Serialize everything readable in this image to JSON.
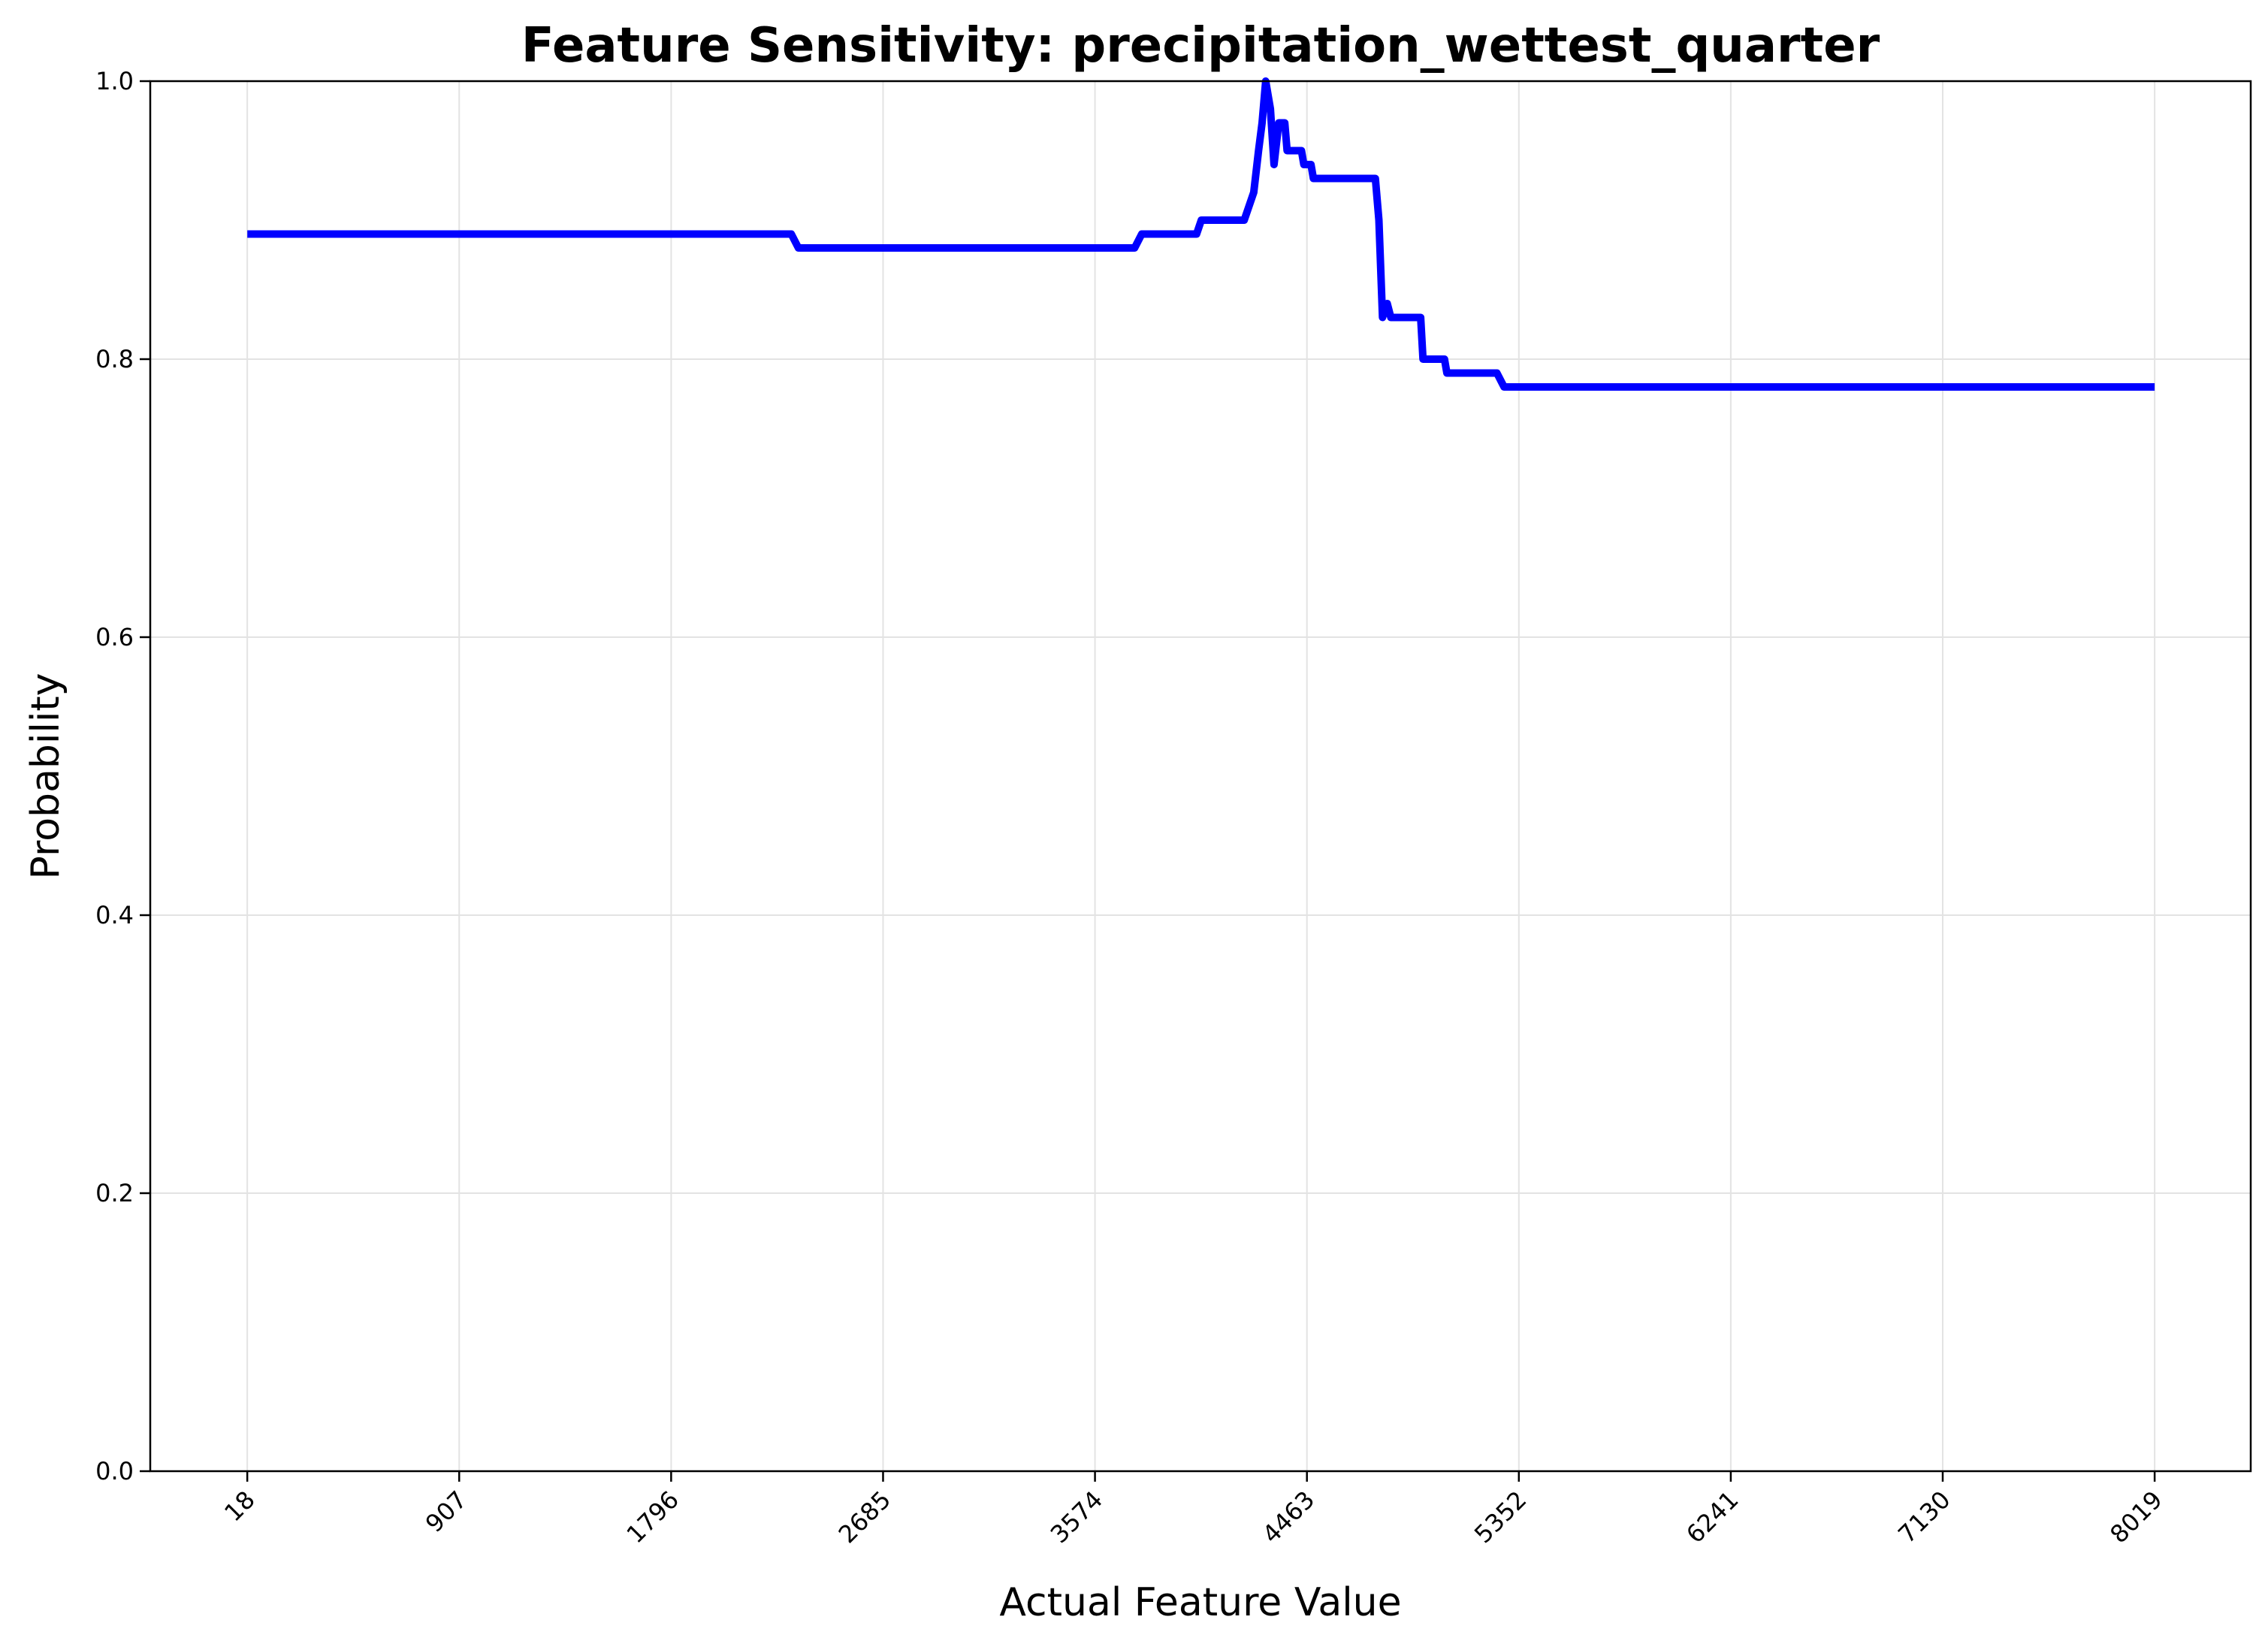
{
  "chart_data": {
    "type": "line",
    "title": "Feature Sensitivity: precipitation_wettest_quarter",
    "xlabel": "Actual Feature Value",
    "ylabel": "Probability",
    "xlim": [
      -389,
      8422
    ],
    "ylim": [
      0,
      1
    ],
    "xticks": [
      18,
      907,
      1796,
      2685,
      3574,
      4463,
      5352,
      6241,
      7130,
      8019
    ],
    "xtick_labels": [
      "18",
      "907",
      "1796",
      "2685",
      "3574",
      "4463",
      "5352",
      "6241",
      "7130",
      "8019"
    ],
    "yticks": [
      0,
      0.2,
      0.4,
      0.6,
      0.8,
      1.0
    ],
    "ytick_labels": [
      "0.0",
      "0.2",
      "0.4",
      "0.6",
      "0.8",
      "1.0"
    ],
    "grid": true,
    "color": "#0000ff",
    "series": [
      {
        "x": [
          18,
          2300,
          2330,
          3740,
          3770,
          4000,
          4020,
          4200,
          4240,
          4260,
          4275,
          4290,
          4310,
          4325,
          4345,
          4370,
          4380,
          4400,
          4440,
          4450,
          4480,
          4490,
          4520,
          4530,
          4560,
          4750,
          4765,
          4780,
          4800,
          4815,
          4830,
          4860,
          4940,
          4950,
          4990,
          5040,
          5050,
          5110,
          5260,
          5290,
          8019
        ],
        "y": [
          0.89,
          0.89,
          0.88,
          0.88,
          0.89,
          0.89,
          0.9,
          0.9,
          0.92,
          0.95,
          0.97,
          1.0,
          0.98,
          0.94,
          0.97,
          0.97,
          0.95,
          0.95,
          0.95,
          0.94,
          0.94,
          0.93,
          0.93,
          0.93,
          0.93,
          0.93,
          0.9,
          0.83,
          0.84,
          0.83,
          0.83,
          0.83,
          0.83,
          0.8,
          0.8,
          0.8,
          0.79,
          0.79,
          0.79,
          0.78,
          0.78
        ]
      }
    ]
  }
}
